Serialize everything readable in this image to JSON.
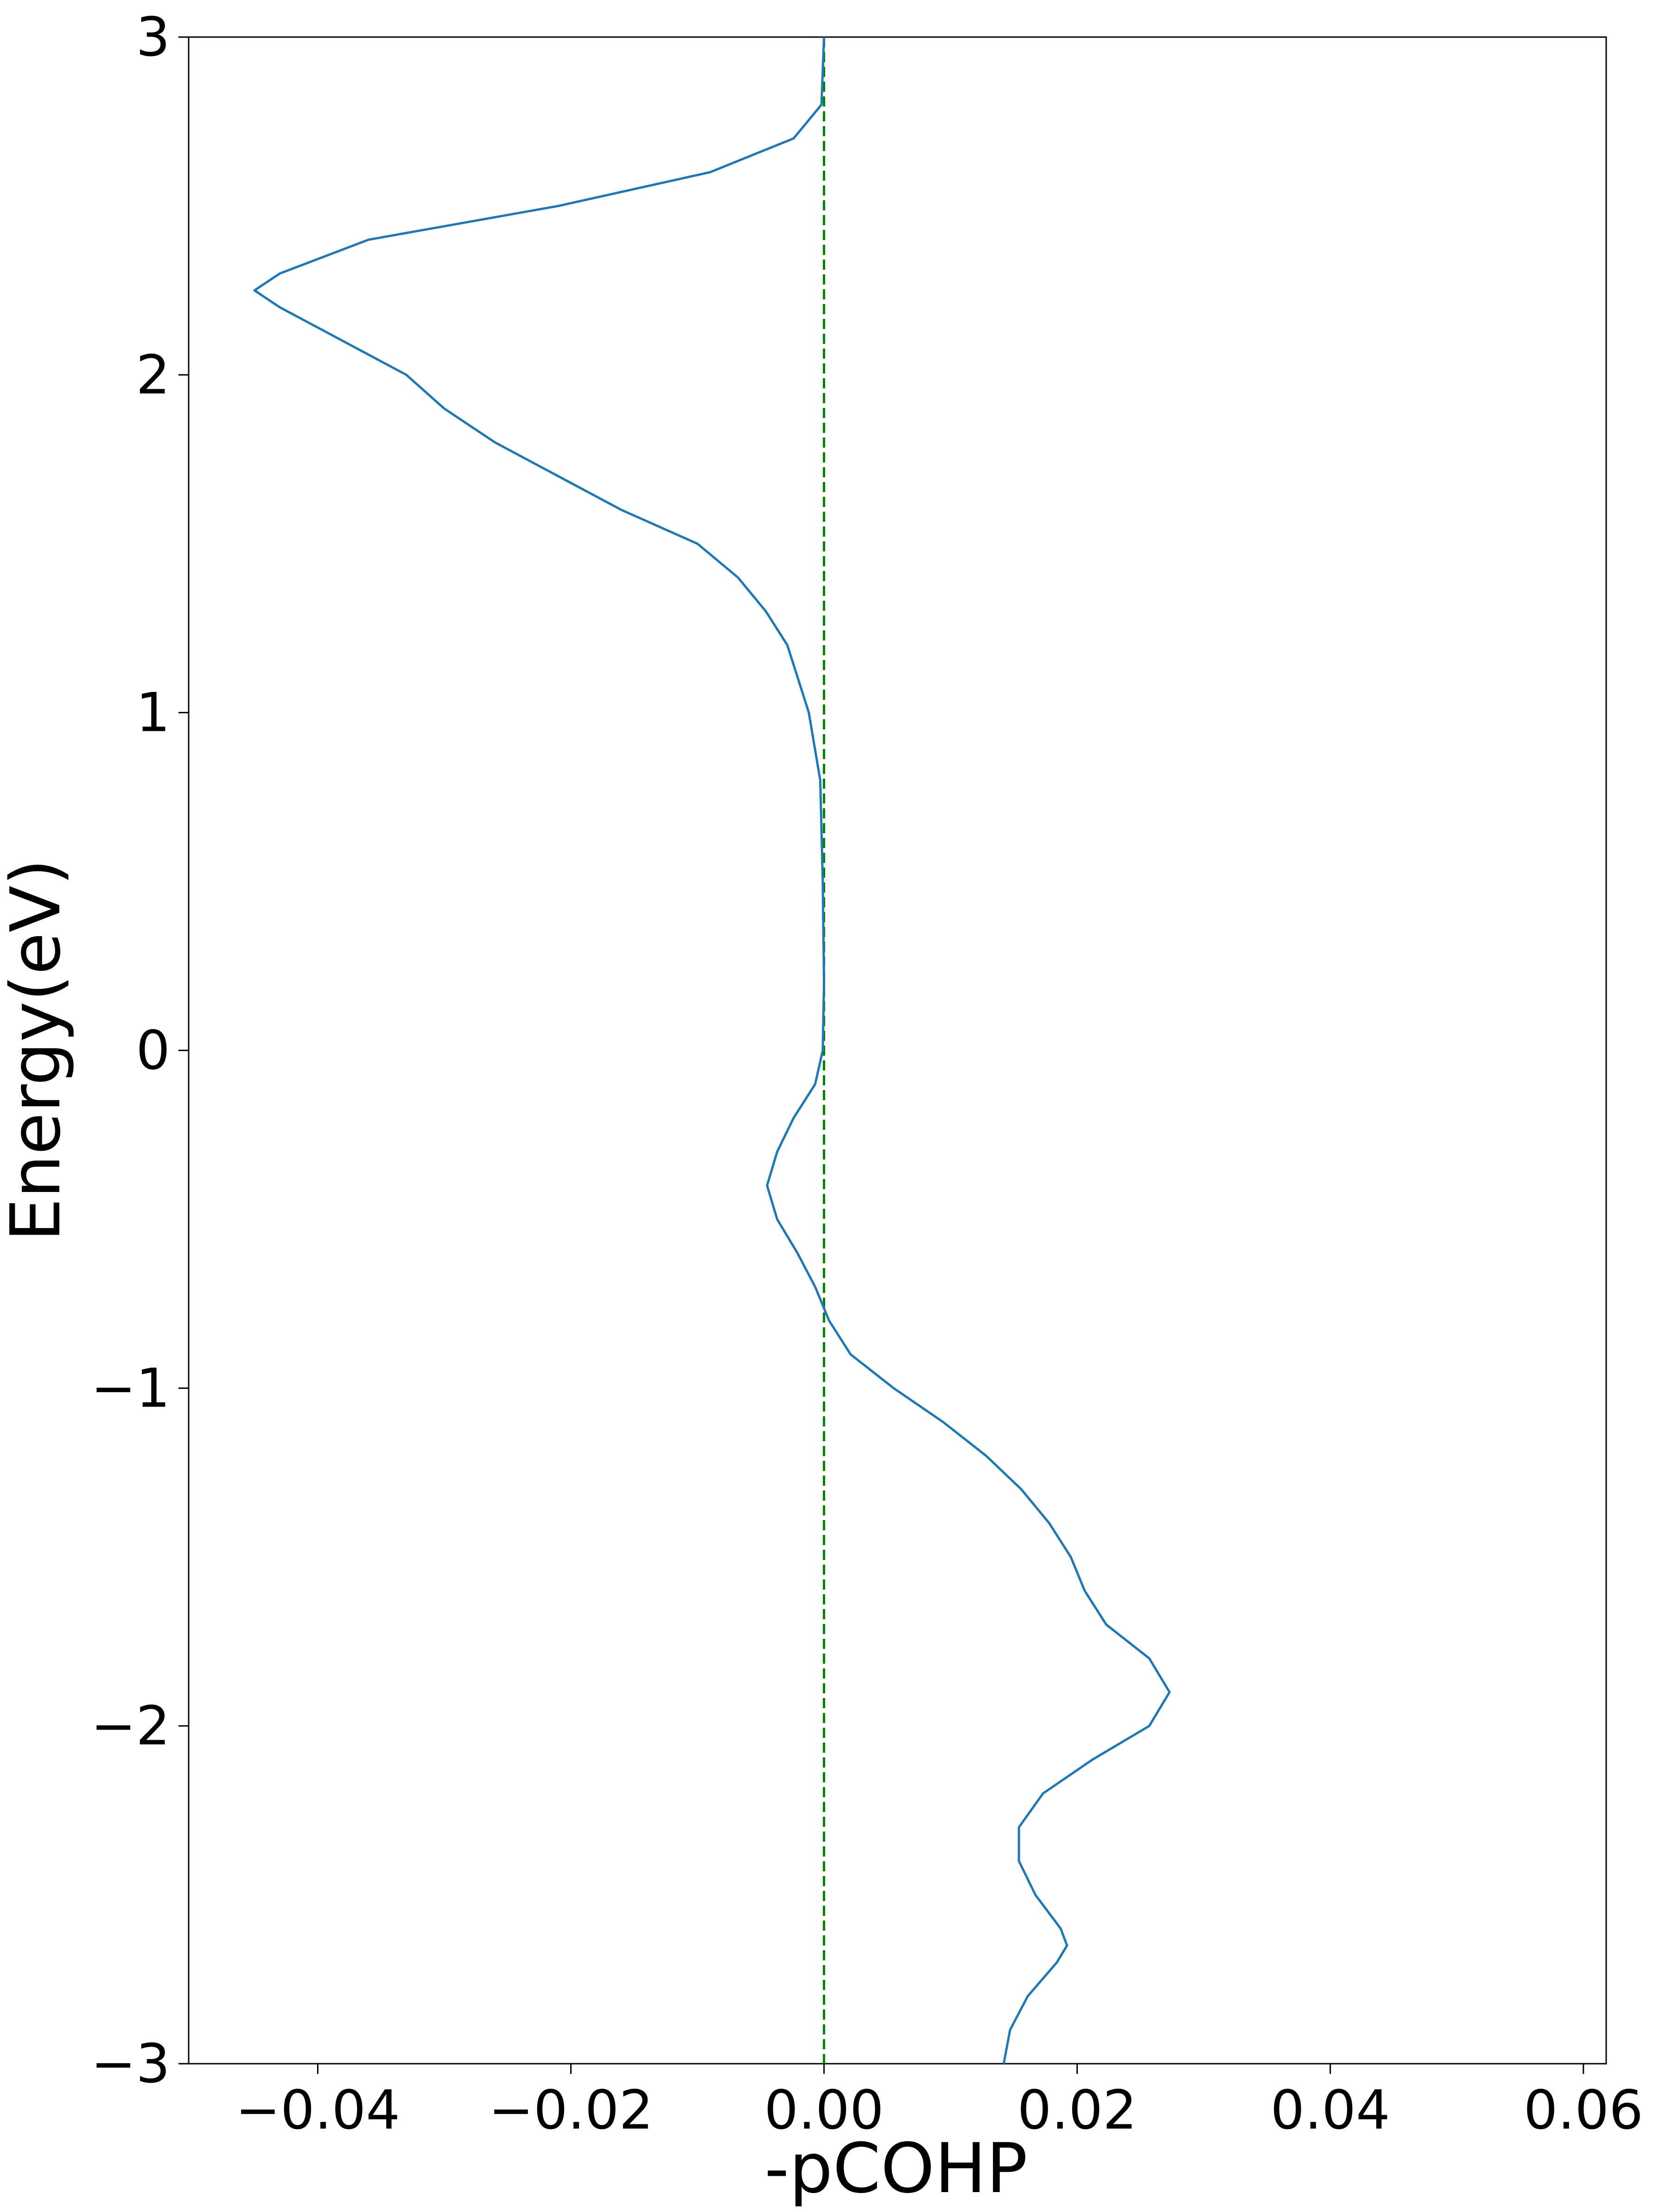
{
  "chart_data": {
    "type": "line",
    "orientation": "vertical",
    "xlabel": "-pCOHP",
    "ylabel": "Energy(eV)",
    "y": [
      3,
      2.8,
      2.7,
      2.6,
      2.5,
      2.4,
      2.3,
      2.25,
      2.2,
      2.1,
      2.0,
      1.9,
      1.8,
      1.7,
      1.6,
      1.5,
      1.4,
      1.3,
      1.2,
      1.0,
      0.8,
      0.5,
      0.2,
      0,
      -0.1,
      -0.2,
      -0.3,
      -0.4,
      -0.5,
      -0.6,
      -0.7,
      -0.8,
      -0.9,
      -1.0,
      -1.1,
      -1.2,
      -1.3,
      -1.4,
      -1.5,
      -1.6,
      -1.7,
      -1.8,
      -1.9,
      -2.0,
      -2.1,
      -2.2,
      -2.3,
      -2.4,
      -2.5,
      -2.6,
      -2.65,
      -2.7,
      -2.8,
      -2.9,
      -3.0
    ],
    "values": [
      0,
      -0.0002,
      -0.0024,
      -0.009,
      -0.021,
      -0.036,
      -0.043,
      -0.045,
      -0.043,
      -0.038,
      -0.033,
      -0.03,
      -0.026,
      -0.021,
      -0.016,
      -0.01,
      -0.0068,
      -0.0046,
      -0.0029,
      -0.0012,
      -0.0003,
      -0.0001,
      0,
      -0.0001,
      -0.0007,
      -0.0024,
      -0.0037,
      -0.0045,
      -0.0037,
      -0.0021,
      -0.0007,
      0.0004,
      0.0021,
      0.0055,
      0.0094,
      0.0128,
      0.0156,
      0.0178,
      0.0195,
      0.0206,
      0.0223,
      0.0257,
      0.0273,
      0.0257,
      0.0212,
      0.0173,
      0.0154,
      0.0154,
      0.0167,
      0.0187,
      0.0192,
      0.0184,
      0.0161,
      0.0147,
      0.0142
    ],
    "color": "#1f77b4",
    "reference_line": {
      "value": 0,
      "color": "#008000",
      "style": "dashed"
    },
    "xlim": [
      -0.0502,
      0.0618
    ],
    "ylim": [
      -3,
      3
    ],
    "xticks": [
      {
        "value": -0.04,
        "label": "−0.04"
      },
      {
        "value": -0.02,
        "label": "−0.02"
      },
      {
        "value": 0,
        "label": "0.00"
      },
      {
        "value": 0.02,
        "label": "0.02"
      },
      {
        "value": 0.04,
        "label": "0.04"
      },
      {
        "value": 0.06,
        "label": "0.06"
      }
    ],
    "yticks": [
      {
        "value": -3,
        "label": "−3"
      },
      {
        "value": -2,
        "label": "−2"
      },
      {
        "value": -1,
        "label": "−1"
      },
      0,
      1,
      2,
      3
    ],
    "grid": false
  }
}
